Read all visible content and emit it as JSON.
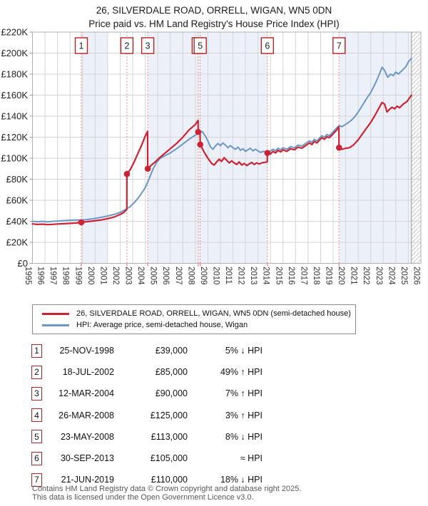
{
  "title": {
    "line1": "26, SILVERDALE ROAD, ORRELL, WIGAN, WN5 0DN",
    "line2": "Price paid vs. HM Land Registry's House Price Index (HPI)"
  },
  "chart_data": {
    "type": "line",
    "x_axis": {
      "start_year": 1995,
      "end_year": 2026,
      "tick_interval": 1
    },
    "y_axis": {
      "min": 0,
      "max": 220000,
      "tick_step": 20000,
      "tick_labels": [
        "£0",
        "£20K",
        "£40K",
        "£60K",
        "£80K",
        "£100K",
        "£120K",
        "£140K",
        "£160K",
        "£180K",
        "£200K",
        "£220K"
      ]
    },
    "colors": {
      "price_line": "#cc2233",
      "hpi_line": "#6b96c8",
      "band_fill": "#ecf1f9",
      "event_dash": "#f08080",
      "grid": "#d4d4d4",
      "border": "#b0b0b0",
      "hatch": "#c9c9c9",
      "box_border": "#b22323",
      "data_end_line": "#999999"
    },
    "bands": [
      {
        "from": 1998.87,
        "to": 2001.0
      },
      {
        "from": 2004.2,
        "to": 2013.75
      },
      {
        "from": 2019.47,
        "to": 2025.25
      }
    ],
    "hatch_from": 2025.25,
    "events": [
      {
        "n": "1",
        "year": 1998.9,
        "price_k": 39
      },
      {
        "n": "2",
        "year": 2002.54,
        "price_k": 85
      },
      {
        "n": "3",
        "year": 2004.2,
        "price_k": 90
      },
      {
        "n": "4",
        "year": 2008.23,
        "price_k": 125
      },
      {
        "n": "5",
        "year": 2008.39,
        "price_k": 113
      },
      {
        "n": "6",
        "year": 2013.75,
        "price_k": 105
      },
      {
        "n": "7",
        "year": 2019.47,
        "price_k": 110
      }
    ],
    "series": [
      {
        "name": "price_paid",
        "color": "#cc2233",
        "width": 2.2,
        "points_k": [
          [
            1995.0,
            37.5
          ],
          [
            1995.4,
            37.0
          ],
          [
            1995.8,
            37.3
          ],
          [
            1996.2,
            36.8
          ],
          [
            1996.6,
            37.1
          ],
          [
            1997.0,
            37.4
          ],
          [
            1997.5,
            37.7
          ],
          [
            1998.0,
            38.0
          ],
          [
            1998.5,
            38.4
          ],
          [
            1998.9,
            39.0
          ],
          [
            1999.3,
            39.6
          ],
          [
            1999.7,
            40.1
          ],
          [
            2000.1,
            40.7
          ],
          [
            2000.5,
            41.3
          ],
          [
            2001.0,
            42.5
          ],
          [
            2001.5,
            44.0
          ],
          [
            2002.0,
            46.5
          ],
          [
            2002.3,
            48.5
          ],
          [
            2002.53,
            51.5
          ],
          [
            2002.54,
            85.0
          ],
          [
            2002.8,
            89.0
          ],
          [
            2003.1,
            96.0
          ],
          [
            2003.4,
            104.0
          ],
          [
            2003.7,
            112.0
          ],
          [
            2004.0,
            121.0
          ],
          [
            2004.19,
            125.5
          ],
          [
            2004.2,
            90.0
          ],
          [
            2004.5,
            93.5
          ],
          [
            2004.8,
            96.5
          ],
          [
            2005.1,
            100.0
          ],
          [
            2005.5,
            104.0
          ],
          [
            2006.0,
            109.0
          ],
          [
            2006.5,
            114.0
          ],
          [
            2007.0,
            120.0
          ],
          [
            2007.5,
            127.0
          ],
          [
            2008.0,
            132.0
          ],
          [
            2008.22,
            136.0
          ],
          [
            2008.23,
            125.0
          ],
          [
            2008.38,
            124.0
          ],
          [
            2008.39,
            113.0
          ],
          [
            2008.7,
            106.0
          ],
          [
            2009.0,
            100.0
          ],
          [
            2009.3,
            95.0
          ],
          [
            2009.5,
            93.5
          ],
          [
            2009.7,
            96.5
          ],
          [
            2009.9,
            99.0
          ],
          [
            2010.1,
            97.0
          ],
          [
            2010.3,
            100.5
          ],
          [
            2010.5,
            98.0
          ],
          [
            2010.7,
            95.5
          ],
          [
            2010.9,
            97.5
          ],
          [
            2011.1,
            95.5
          ],
          [
            2011.3,
            94.0
          ],
          [
            2011.5,
            96.5
          ],
          [
            2011.7,
            93.5
          ],
          [
            2011.9,
            95.0
          ],
          [
            2012.1,
            93.0
          ],
          [
            2012.3,
            94.5
          ],
          [
            2012.5,
            96.0
          ],
          [
            2012.7,
            94.0
          ],
          [
            2012.9,
            95.5
          ],
          [
            2013.1,
            94.5
          ],
          [
            2013.3,
            95.5
          ],
          [
            2013.5,
            96.0
          ],
          [
            2013.74,
            96.5
          ],
          [
            2013.75,
            105.0
          ],
          [
            2014.0,
            104.0
          ],
          [
            2014.2,
            106.5
          ],
          [
            2014.4,
            105.0
          ],
          [
            2014.6,
            107.5
          ],
          [
            2014.8,
            106.0
          ],
          [
            2015.0,
            108.0
          ],
          [
            2015.3,
            106.5
          ],
          [
            2015.6,
            109.0
          ],
          [
            2015.9,
            108.0
          ],
          [
            2016.2,
            110.5
          ],
          [
            2016.5,
            109.5
          ],
          [
            2016.8,
            112.0
          ],
          [
            2017.1,
            114.5
          ],
          [
            2017.3,
            113.0
          ],
          [
            2017.5,
            116.0
          ],
          [
            2017.7,
            114.5
          ],
          [
            2017.9,
            117.0
          ],
          [
            2018.1,
            119.5
          ],
          [
            2018.3,
            118.0
          ],
          [
            2018.5,
            120.5
          ],
          [
            2018.7,
            119.5
          ],
          [
            2018.9,
            122.0
          ],
          [
            2019.1,
            124.5
          ],
          [
            2019.3,
            127.0
          ],
          [
            2019.46,
            130.0
          ],
          [
            2019.47,
            110.0
          ],
          [
            2019.7,
            108.5
          ],
          [
            2020.0,
            109.5
          ],
          [
            2020.3,
            110.0
          ],
          [
            2020.6,
            112.5
          ],
          [
            2021.0,
            117.5
          ],
          [
            2021.3,
            122.5
          ],
          [
            2021.6,
            127.5
          ],
          [
            2022.0,
            134.0
          ],
          [
            2022.3,
            140.0
          ],
          [
            2022.6,
            146.5
          ],
          [
            2022.9,
            153.0
          ],
          [
            2023.1,
            151.5
          ],
          [
            2023.3,
            144.0
          ],
          [
            2023.5,
            146.5
          ],
          [
            2023.7,
            148.5
          ],
          [
            2023.9,
            147.0
          ],
          [
            2024.1,
            149.5
          ],
          [
            2024.3,
            148.0
          ],
          [
            2024.6,
            151.5
          ],
          [
            2024.9,
            154.0
          ],
          [
            2025.1,
            157.5
          ],
          [
            2025.25,
            160.0
          ]
        ]
      },
      {
        "name": "hpi",
        "color": "#6b96c8",
        "width": 2.0,
        "points_k": [
          [
            1995.0,
            40.0
          ],
          [
            1995.4,
            39.6
          ],
          [
            1995.8,
            40.0
          ],
          [
            1996.2,
            39.4
          ],
          [
            1996.6,
            39.9
          ],
          [
            1997.0,
            40.3
          ],
          [
            1997.5,
            40.7
          ],
          [
            1998.0,
            41.0
          ],
          [
            1998.5,
            41.3
          ],
          [
            1998.9,
            41.1
          ],
          [
            1999.3,
            41.6
          ],
          [
            1999.7,
            42.2
          ],
          [
            2000.1,
            43.0
          ],
          [
            2000.5,
            43.8
          ],
          [
            2001.0,
            45.0
          ],
          [
            2001.5,
            46.5
          ],
          [
            2002.0,
            48.5
          ],
          [
            2002.4,
            51.0
          ],
          [
            2002.8,
            54.0
          ],
          [
            2003.1,
            57.5
          ],
          [
            2003.4,
            61.5
          ],
          [
            2003.7,
            66.5
          ],
          [
            2004.0,
            72.0
          ],
          [
            2004.3,
            80.0
          ],
          [
            2004.6,
            89.0
          ],
          [
            2004.9,
            96.0
          ],
          [
            2005.2,
            100.0
          ],
          [
            2005.6,
            102.5
          ],
          [
            2006.0,
            105.0
          ],
          [
            2006.5,
            109.0
          ],
          [
            2007.0,
            113.5
          ],
          [
            2007.5,
            118.0
          ],
          [
            2008.0,
            122.0
          ],
          [
            2008.3,
            124.0
          ],
          [
            2008.55,
            125.5
          ],
          [
            2008.8,
            121.0
          ],
          [
            2009.0,
            116.5
          ],
          [
            2009.2,
            111.0
          ],
          [
            2009.4,
            108.5
          ],
          [
            2009.6,
            111.5
          ],
          [
            2009.8,
            114.0
          ],
          [
            2010.0,
            112.0
          ],
          [
            2010.2,
            114.5
          ],
          [
            2010.4,
            112.5
          ],
          [
            2010.6,
            110.0
          ],
          [
            2010.8,
            112.0
          ],
          [
            2011.0,
            110.0
          ],
          [
            2011.2,
            108.5
          ],
          [
            2011.4,
            110.5
          ],
          [
            2011.6,
            107.5
          ],
          [
            2011.8,
            109.0
          ],
          [
            2012.0,
            106.5
          ],
          [
            2012.2,
            108.0
          ],
          [
            2012.4,
            109.5
          ],
          [
            2012.6,
            107.0
          ],
          [
            2012.8,
            108.5
          ],
          [
            2013.0,
            107.0
          ],
          [
            2013.2,
            105.5
          ],
          [
            2013.4,
            106.5
          ],
          [
            2013.75,
            106.0
          ],
          [
            2014.0,
            107.0
          ],
          [
            2014.2,
            108.5
          ],
          [
            2014.4,
            107.0
          ],
          [
            2014.6,
            109.5
          ],
          [
            2014.8,
            108.0
          ],
          [
            2015.0,
            110.0
          ],
          [
            2015.3,
            108.5
          ],
          [
            2015.6,
            111.0
          ],
          [
            2015.9,
            110.0
          ],
          [
            2016.2,
            112.5
          ],
          [
            2016.5,
            111.5
          ],
          [
            2016.8,
            114.0
          ],
          [
            2017.1,
            116.5
          ],
          [
            2017.3,
            115.0
          ],
          [
            2017.5,
            118.0
          ],
          [
            2017.7,
            116.5
          ],
          [
            2017.9,
            119.0
          ],
          [
            2018.1,
            121.5
          ],
          [
            2018.3,
            120.0
          ],
          [
            2018.5,
            122.5
          ],
          [
            2018.7,
            121.5
          ],
          [
            2018.9,
            124.0
          ],
          [
            2019.1,
            126.5
          ],
          [
            2019.3,
            129.0
          ],
          [
            2019.5,
            131.0
          ],
          [
            2019.7,
            130.0
          ],
          [
            2019.9,
            131.5
          ],
          [
            2020.1,
            133.0
          ],
          [
            2020.4,
            135.5
          ],
          [
            2020.7,
            139.0
          ],
          [
            2021.0,
            144.0
          ],
          [
            2021.3,
            149.5
          ],
          [
            2021.6,
            155.5
          ],
          [
            2022.0,
            162.5
          ],
          [
            2022.3,
            169.5
          ],
          [
            2022.6,
            177.5
          ],
          [
            2022.9,
            186.5
          ],
          [
            2023.1,
            183.5
          ],
          [
            2023.35,
            177.0
          ],
          [
            2023.6,
            180.0
          ],
          [
            2023.8,
            178.5
          ],
          [
            2024.0,
            182.0
          ],
          [
            2024.2,
            180.0
          ],
          [
            2024.5,
            183.5
          ],
          [
            2024.8,
            187.0
          ],
          [
            2025.0,
            191.5
          ],
          [
            2025.25,
            195.0
          ]
        ]
      }
    ]
  },
  "legend": {
    "items": [
      {
        "label": "26, SILVERDALE ROAD, ORRELL, WIGAN, WN5 0DN (semi-detached house)",
        "color": "#cc2233"
      },
      {
        "label": "HPI: Average price, semi-detached house, Wigan",
        "color": "#6b96c8"
      }
    ]
  },
  "transactions": [
    {
      "n": "1",
      "date": "25-NOV-1998",
      "price": "£39,000",
      "hpi": "5% ↓ HPI"
    },
    {
      "n": "2",
      "date": "18-JUL-2002",
      "price": "£85,000",
      "hpi": "49% ↑ HPI"
    },
    {
      "n": "3",
      "date": "12-MAR-2004",
      "price": "£90,000",
      "hpi": "7% ↑ HPI"
    },
    {
      "n": "4",
      "date": "26-MAR-2008",
      "price": "£125,000",
      "hpi": "3% ↑ HPI"
    },
    {
      "n": "5",
      "date": "23-MAY-2008",
      "price": "£113,000",
      "hpi": "8% ↓ HPI"
    },
    {
      "n": "6",
      "date": "30-SEP-2013",
      "price": "£105,000",
      "hpi": "≈ HPI"
    },
    {
      "n": "7",
      "date": "21-JUN-2019",
      "price": "£110,000",
      "hpi": "18% ↓ HPI"
    }
  ],
  "footer": {
    "line1": "Contains HM Land Registry data © Crown copyright and database right 2025.",
    "line2": "This data is licensed under the Open Government Licence v3.0."
  }
}
